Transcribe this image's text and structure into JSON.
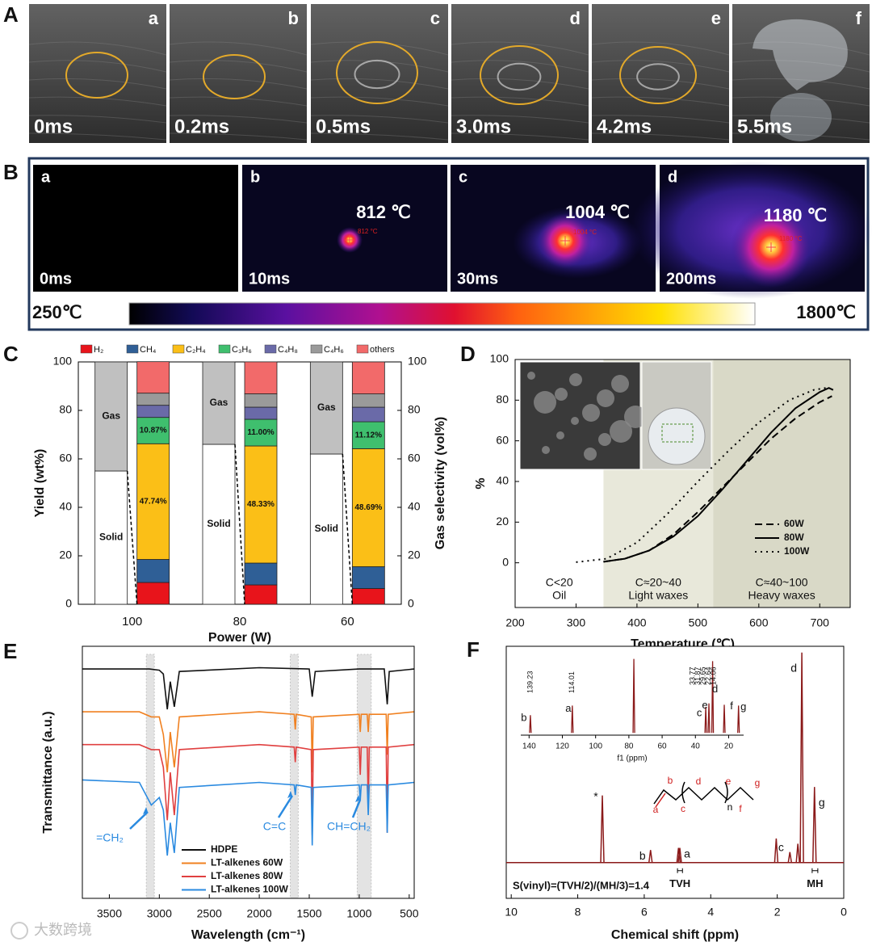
{
  "panel_a": {
    "label": "A",
    "frames": [
      {
        "letter": "a",
        "time": "0ms"
      },
      {
        "letter": "b",
        "time": "0.2ms"
      },
      {
        "letter": "c",
        "time": "0.5ms"
      },
      {
        "letter": "d",
        "time": "3.0ms"
      },
      {
        "letter": "e",
        "time": "4.2ms"
      },
      {
        "letter": "f",
        "time": "5.5ms"
      }
    ]
  },
  "panel_b": {
    "label": "B",
    "frames": [
      {
        "letter": "a",
        "time": "0ms",
        "temperature": null,
        "spot_label": null
      },
      {
        "letter": "b",
        "time": "10ms",
        "temperature": "812 ℃",
        "spot_label": "812 °C"
      },
      {
        "letter": "c",
        "time": "30ms",
        "temperature": "1004 ℃",
        "spot_label": "1004 °C"
      },
      {
        "letter": "d",
        "time": "200ms",
        "temperature": "1180 ℃",
        "spot_label": "1180 °C"
      }
    ],
    "colorbar_min": "250℃",
    "colorbar_max": "1800℃"
  },
  "chart_data": [
    {
      "label": "C",
      "type": "bar",
      "stacked": true,
      "categories": [
        "100",
        "80",
        "60"
      ],
      "xlabel": "Power (W)",
      "ylabel": "Yield (wt%)",
      "y2label": "Gas selectivity (vol%)",
      "ylim": [
        0,
        100
      ],
      "yticks": [
        0,
        20,
        40,
        60,
        80,
        100
      ],
      "y2lim": [
        0,
        100
      ],
      "y2ticks": [
        0,
        20,
        40,
        60,
        80,
        100
      ],
      "series": [
        {
          "name": "Solid",
          "color": "#ffffff",
          "values": [
            55,
            66,
            62
          ]
        },
        {
          "name": "Gas",
          "color": "#c0c0c0",
          "values": [
            45,
            34,
            38
          ]
        },
        {
          "name": "H₂",
          "color": "#e8141b",
          "values": [
            9,
            8,
            6.5
          ],
          "axis": "y2"
        },
        {
          "name": "CH₄",
          "color": "#2f5f96",
          "values": [
            9.5,
            9,
            9
          ],
          "axis": "y2"
        },
        {
          "name": "C₂H₄",
          "color": "#fbbf17",
          "values": [
            47.74,
            48.33,
            48.69
          ],
          "value_labels": [
            "47.74%",
            "48.33%",
            "48.69%"
          ],
          "axis": "y2"
        },
        {
          "name": "C₃H₆",
          "color": "#3fbf6e",
          "values": [
            10.87,
            11.0,
            11.12
          ],
          "value_labels": [
            "10.87%",
            "11.00%",
            "11.12%"
          ],
          "axis": "y2"
        },
        {
          "name": "C₄H₈",
          "color": "#6a6aa8",
          "values": [
            5,
            5,
            6
          ],
          "axis": "y2"
        },
        {
          "name": "C₄H₆",
          "color": "#9a9a9a",
          "values": [
            5,
            5.5,
            5.5
          ],
          "axis": "y2"
        },
        {
          "name": "others",
          "color": "#f26a6a",
          "values": [
            13,
            13.2,
            13.2
          ],
          "axis": "y2"
        }
      ]
    },
    {
      "label": "D",
      "type": "line",
      "xlabel": "Temperature (℃)",
      "ylabel": "%",
      "xlim": [
        200,
        750
      ],
      "xticks": [
        200,
        300,
        400,
        500,
        600,
        700
      ],
      "ylim": [
        -22,
        100
      ],
      "yticks": [
        0,
        20,
        40,
        60,
        80,
        100
      ],
      "legend": "lower right",
      "regions": [
        {
          "xlim": [
            200,
            345
          ],
          "color": "#ffffff",
          "label": [
            "C<20",
            "Oil"
          ]
        },
        {
          "xlim": [
            345,
            525
          ],
          "color": "#e8e8da",
          "label": [
            "C≈20~40",
            "Light waxes"
          ]
        },
        {
          "xlim": [
            525,
            750
          ],
          "color": "#d9d9c7",
          "label": [
            "C≈40~100",
            "Heavy waxes"
          ]
        }
      ],
      "series": [
        {
          "name": "60W",
          "color": "#000000",
          "dash": "dashed",
          "x": [
            345,
            380,
            420,
            460,
            500,
            540,
            580,
            620,
            660,
            700,
            720
          ],
          "values": [
            0.5,
            2,
            6,
            14,
            25,
            37,
            49,
            61,
            71,
            79,
            82
          ]
        },
        {
          "name": "80W",
          "color": "#000000",
          "dash": "solid",
          "x": [
            345,
            380,
            420,
            460,
            500,
            540,
            580,
            620,
            660,
            700,
            715,
            722
          ],
          "values": [
            0.5,
            2,
            6,
            13,
            23,
            36,
            50,
            64,
            76,
            84,
            86,
            85
          ]
        },
        {
          "name": "100W",
          "color": "#000000",
          "dash": "dotted",
          "x": [
            300,
            350,
            400,
            450,
            500,
            550,
            600,
            650,
            690,
            710
          ],
          "values": [
            0.3,
            2,
            10,
            24,
            40,
            55,
            69,
            80,
            85,
            86
          ]
        }
      ]
    },
    {
      "label": "E",
      "type": "line",
      "xlabel": "Wavelength (cm⁻¹)",
      "ylabel": "Transmittance (a.u.)",
      "xlim": [
        3770,
        450
      ],
      "xticks": [
        3500,
        3000,
        2500,
        2000,
        1500,
        1000,
        500
      ],
      "ylim": [
        0,
        100
      ],
      "shaded_bands": [
        [
          3130,
          3050
        ],
        [
          1690,
          1610
        ],
        [
          1020,
          880
        ]
      ],
      "annotations": [
        "=CH₂",
        "C=C",
        "CH=CH₂"
      ],
      "series": [
        {
          "name": "HDPE",
          "color": "#111111",
          "x": [
            3770,
            3100,
            3000,
            2960,
            2920,
            2890,
            2850,
            2800,
            2000,
            1500,
            1470,
            1440,
            1000,
            750,
            720,
            700,
            450
          ],
          "values": [
            91,
            91,
            90.5,
            89,
            75,
            86,
            76,
            90,
            91.5,
            91,
            80,
            90,
            91,
            91,
            77,
            90,
            91
          ]
        },
        {
          "name": "LT-alkenes 60W",
          "color": "#f08020",
          "x": [
            3770,
            3200,
            3080,
            3000,
            2960,
            2920,
            2890,
            2850,
            2800,
            2000,
            1650,
            1640,
            1630,
            1480,
            1470,
            1460,
            1000,
            990,
            980,
            920,
            910,
            900,
            730,
            720,
            710,
            450
          ],
          "values": [
            74,
            74,
            72,
            72,
            65,
            50,
            66,
            52,
            72,
            74,
            73,
            67,
            73,
            72,
            50,
            72,
            73,
            66,
            73,
            73,
            66,
            73,
            73,
            57,
            73,
            74
          ]
        },
        {
          "name": "LT-alkenes 80W",
          "color": "#e04040",
          "x": [
            3770,
            3200,
            3080,
            3000,
            2960,
            2920,
            2890,
            2850,
            2800,
            2000,
            1650,
            1640,
            1630,
            1480,
            1470,
            1460,
            1000,
            990,
            980,
            920,
            910,
            900,
            730,
            720,
            710,
            450
          ],
          "values": [
            61,
            61,
            59,
            59,
            52,
            31,
            50,
            33,
            59,
            61,
            60,
            54,
            60,
            59,
            25,
            59,
            60,
            49,
            60,
            60,
            36,
            60,
            60,
            26,
            60,
            61
          ]
        },
        {
          "name": "LT-alkenes 100W",
          "color": "#2a8ae0",
          "x": [
            3770,
            3200,
            3080,
            3000,
            2960,
            2920,
            2890,
            2850,
            2800,
            2000,
            1650,
            1640,
            1630,
            1480,
            1470,
            1460,
            1000,
            990,
            980,
            920,
            910,
            900,
            730,
            720,
            710,
            450
          ],
          "values": [
            47,
            46,
            37,
            40,
            35,
            17,
            30,
            18,
            44,
            46,
            45,
            41,
            45,
            44,
            21,
            44,
            45,
            39,
            45,
            45,
            33,
            45,
            45,
            26,
            45,
            46
          ]
        }
      ]
    },
    {
      "label": "F",
      "type": "nmr",
      "xlabel": "Chemical shift (ppm)",
      "color": "#8b1a1a",
      "xlim": [
        10.15,
        0
      ],
      "xticks": [
        10,
        8,
        6,
        4,
        2,
        0
      ],
      "ylim": [
        -17,
        103
      ],
      "x": [
        7.26,
        5.81,
        4.97,
        4.93,
        2.03,
        1.62,
        1.38,
        1.26,
        0.88
      ],
      "values": [
        32,
        6,
        7,
        7,
        11.5,
        5,
        9,
        100,
        36
      ],
      "labels": [
        "*",
        "b",
        null,
        "a",
        "c",
        null,
        null,
        "d",
        "g"
      ],
      "integrals": [
        {
          "label": "TVH",
          "x": [
            5.0,
            4.85
          ]
        },
        {
          "label": "MH",
          "x": [
            0.95,
            0.78
          ]
        }
      ],
      "annotation": "S(vinyl)=(TVH/2)/(MH/3)=1.4",
      "structure_labels": [
        "a",
        "b",
        "c",
        "d",
        "n",
        "e",
        "f",
        "g"
      ],
      "inset": {
        "xlabel": "f1 (ppm)",
        "xlim": [
          145,
          11
        ],
        "xticks": [
          140,
          120,
          100,
          80,
          60,
          40,
          20
        ],
        "ylim": [
          -3,
          105
        ],
        "x": [
          139.23,
          114.01,
          77.0,
          33.77,
          31.87,
          29.65,
          22.64,
          14.06
        ],
        "values": [
          24,
          37,
          100,
          35,
          40,
          97,
          38,
          37
        ],
        "labels": [
          "b",
          "a",
          null,
          "c",
          "e",
          "d",
          "f",
          "g"
        ],
        "x_labels": [
          "139.23",
          "114.01",
          null,
          "33.77",
          "31.87",
          "29.65",
          "22.64",
          "14.06"
        ]
      }
    }
  ],
  "watermark": "大数跨境"
}
